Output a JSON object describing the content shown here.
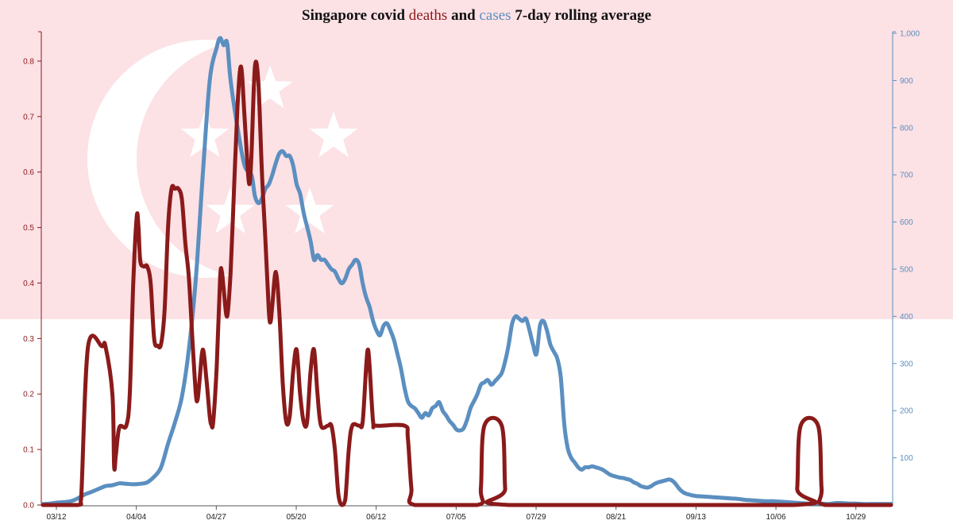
{
  "colors": {
    "deaths": "#8b1a1a",
    "cases": "#5b8fc0",
    "flag_red": "#fce1e5",
    "flag_white": "#ffffff",
    "title_text": "#111111",
    "axis_x": "#555555"
  },
  "chart_data": {
    "type": "line",
    "title": {
      "prefix": "Singapore covid ",
      "series_a": "deaths",
      "middle": " and ",
      "series_b": "cases",
      "suffix": " 7-day rolling average"
    },
    "background": "singapore-flag",
    "x": {
      "unit": "days-since-first-tick",
      "min": 0,
      "max": 244,
      "tick_values": [
        0,
        23,
        46,
        69,
        92,
        115,
        138,
        161,
        184,
        207,
        230
      ],
      "tick_labels": [
        "03/12",
        "04/04",
        "04/27",
        "05/20",
        "06/12",
        "07/05",
        "07/29",
        "08/21",
        "09/13",
        "10/06",
        "10/29"
      ]
    },
    "y_left": {
      "series": "deaths",
      "min": 0,
      "max": 0.85,
      "tick_values": [
        0,
        0.1,
        0.2,
        0.3,
        0.4,
        0.5,
        0.6,
        0.7,
        0.8
      ],
      "tick_labels": [
        "0.0",
        "0.1",
        "0.2",
        "0.3",
        "0.4",
        "0.5",
        "0.6",
        "0.7",
        "0.8"
      ]
    },
    "y_right": {
      "series": "cases",
      "min": 0,
      "max": 1000,
      "tick_values": [
        100,
        200,
        300,
        400,
        500,
        600,
        700,
        800,
        900,
        1000
      ],
      "tick_labels": [
        "100",
        "200",
        "300",
        "400",
        "500",
        "600",
        "700",
        "800",
        "900",
        "1,000"
      ]
    },
    "series": [
      {
        "name": "deaths",
        "axis": "left",
        "points": [
          [
            0,
            0
          ],
          [
            10,
            0
          ],
          [
            11,
            0.01
          ],
          [
            13,
            0.286
          ],
          [
            17,
            0.286
          ],
          [
            18,
            0.286
          ],
          [
            20,
            0.2
          ],
          [
            20.5,
            0.07
          ],
          [
            21,
            0.09
          ],
          [
            22,
            0.14
          ],
          [
            24,
            0.143
          ],
          [
            25,
            0.2
          ],
          [
            26,
            0.4
          ],
          [
            27,
            0.52
          ],
          [
            27.5,
            0.5
          ],
          [
            28,
            0.44
          ],
          [
            29,
            0.43
          ],
          [
            30,
            0.43
          ],
          [
            31,
            0.4
          ],
          [
            32,
            0.3
          ],
          [
            33,
            0.287
          ],
          [
            34,
            0.29
          ],
          [
            35,
            0.35
          ],
          [
            36,
            0.5
          ],
          [
            37,
            0.57
          ],
          [
            38,
            0.57
          ],
          [
            39,
            0.57
          ],
          [
            40,
            0.55
          ],
          [
            41,
            0.47
          ],
          [
            42,
            0.41
          ],
          [
            43,
            0.3
          ],
          [
            44,
            0.2
          ],
          [
            44.5,
            0.19
          ],
          [
            45,
            0.22
          ],
          [
            46,
            0.28
          ],
          [
            47,
            0.23
          ],
          [
            48,
            0.16
          ],
          [
            48.5,
            0.144
          ],
          [
            49,
            0.15
          ],
          [
            50,
            0.25
          ],
          [
            51,
            0.41
          ],
          [
            51.5,
            0.42
          ],
          [
            52,
            0.39
          ],
          [
            53,
            0.34
          ],
          [
            54,
            0.42
          ],
          [
            55,
            0.57
          ],
          [
            56,
            0.72
          ],
          [
            57,
            0.79
          ],
          [
            58,
            0.7
          ],
          [
            59,
            0.6
          ],
          [
            59.5,
            0.58
          ],
          [
            60,
            0.63
          ],
          [
            61,
            0.79
          ],
          [
            62,
            0.76
          ],
          [
            63,
            0.6
          ],
          [
            64,
            0.48
          ],
          [
            65,
            0.35
          ],
          [
            65.5,
            0.33
          ],
          [
            66,
            0.36
          ],
          [
            67,
            0.42
          ],
          [
            68,
            0.35
          ],
          [
            69,
            0.22
          ],
          [
            70,
            0.15
          ],
          [
            71,
            0.16
          ],
          [
            72,
            0.24
          ],
          [
            73,
            0.28
          ],
          [
            74,
            0.2
          ],
          [
            75,
            0.15
          ],
          [
            76,
            0.15
          ],
          [
            77,
            0.24
          ],
          [
            78,
            0.28
          ],
          [
            79,
            0.2
          ],
          [
            80,
            0.143
          ],
          [
            82,
            0.143
          ],
          [
            83,
            0.143
          ],
          [
            84,
            0.1
          ],
          [
            85,
            0.02
          ],
          [
            86,
            0
          ],
          [
            87,
            0.01
          ],
          [
            88,
            0.1
          ],
          [
            89,
            0.143
          ],
          [
            91,
            0.143
          ],
          [
            92,
            0.15
          ],
          [
            93,
            0.25
          ],
          [
            93.5,
            0.28
          ],
          [
            94,
            0.25
          ],
          [
            95,
            0.15
          ],
          [
            96,
            0.143
          ],
          [
            104,
            0.143
          ],
          [
            105,
            0.12
          ],
          [
            106,
            0.03
          ],
          [
            107,
            0
          ],
          [
            125,
            0
          ],
          [
            126,
            0.03
          ],
          [
            127,
            0.143
          ],
          [
            132,
            0.143
          ],
          [
            133,
            0.03
          ],
          [
            134,
            0
          ],
          [
            216,
            0
          ],
          [
            217,
            0.03
          ],
          [
            218,
            0.143
          ],
          [
            223,
            0.143
          ],
          [
            224,
            0.03
          ],
          [
            225,
            0
          ],
          [
            244,
            0
          ]
        ]
      },
      {
        "name": "cases",
        "axis": "right",
        "points": [
          [
            0,
            2
          ],
          [
            2,
            3
          ],
          [
            4,
            5
          ],
          [
            6,
            6
          ],
          [
            8,
            8
          ],
          [
            10,
            14
          ],
          [
            12,
            22
          ],
          [
            14,
            28
          ],
          [
            16,
            34
          ],
          [
            18,
            40
          ],
          [
            20,
            42
          ],
          [
            22,
            46
          ],
          [
            24,
            45
          ],
          [
            26,
            44
          ],
          [
            28,
            45
          ],
          [
            30,
            48
          ],
          [
            32,
            60
          ],
          [
            34,
            80
          ],
          [
            36,
            130
          ],
          [
            38,
            175
          ],
          [
            40,
            230
          ],
          [
            42,
            330
          ],
          [
            44,
            480
          ],
          [
            46,
            700
          ],
          [
            48,
            900
          ],
          [
            50,
            970
          ],
          [
            51,
            990
          ],
          [
            52,
            975
          ],
          [
            53,
            980
          ],
          [
            54,
            900
          ],
          [
            56,
            800
          ],
          [
            58,
            720
          ],
          [
            60,
            700
          ],
          [
            61,
            655
          ],
          [
            62,
            640
          ],
          [
            63,
            650
          ],
          [
            64,
            670
          ],
          [
            65,
            680
          ],
          [
            66,
            700
          ],
          [
            67,
            725
          ],
          [
            68,
            745
          ],
          [
            69,
            750
          ],
          [
            70,
            740
          ],
          [
            71,
            740
          ],
          [
            72,
            720
          ],
          [
            73,
            680
          ],
          [
            74,
            660
          ],
          [
            75,
            620
          ],
          [
            76,
            590
          ],
          [
            77,
            560
          ],
          [
            78,
            520
          ],
          [
            79,
            530
          ],
          [
            80,
            520
          ],
          [
            81,
            520
          ],
          [
            82,
            510
          ],
          [
            83,
            500
          ],
          [
            84,
            495
          ],
          [
            85,
            480
          ],
          [
            86,
            470
          ],
          [
            87,
            480
          ],
          [
            88,
            500
          ],
          [
            89,
            510
          ],
          [
            90,
            520
          ],
          [
            91,
            510
          ],
          [
            92,
            470
          ],
          [
            93,
            440
          ],
          [
            94,
            420
          ],
          [
            95,
            390
          ],
          [
            96,
            370
          ],
          [
            97,
            360
          ],
          [
            98,
            380
          ],
          [
            99,
            385
          ],
          [
            100,
            370
          ],
          [
            101,
            350
          ],
          [
            102,
            320
          ],
          [
            103,
            290
          ],
          [
            104,
            250
          ],
          [
            105,
            220
          ],
          [
            106,
            210
          ],
          [
            107,
            205
          ],
          [
            108,
            195
          ],
          [
            109,
            185
          ],
          [
            110,
            195
          ],
          [
            111,
            190
          ],
          [
            112,
            205
          ],
          [
            113,
            210
          ],
          [
            114,
            218
          ],
          [
            115,
            200
          ],
          [
            116,
            190
          ],
          [
            117,
            178
          ],
          [
            118,
            170
          ],
          [
            119,
            160
          ],
          [
            120,
            158
          ],
          [
            121,
            162
          ],
          [
            122,
            180
          ],
          [
            123,
            205
          ],
          [
            124,
            220
          ],
          [
            125,
            235
          ],
          [
            126,
            255
          ],
          [
            127,
            260
          ],
          [
            128,
            265
          ],
          [
            129,
            255
          ],
          [
            130,
            262
          ],
          [
            131,
            270
          ],
          [
            132,
            280
          ],
          [
            133,
            305
          ],
          [
            134,
            340
          ],
          [
            135,
            385
          ],
          [
            136,
            400
          ],
          [
            137,
            395
          ],
          [
            138,
            390
          ],
          [
            139,
            395
          ],
          [
            140,
            370
          ],
          [
            141,
            340
          ],
          [
            142,
            320
          ],
          [
            143,
            380
          ],
          [
            144,
            390
          ],
          [
            145,
            370
          ],
          [
            146,
            340
          ],
          [
            147,
            325
          ],
          [
            148,
            310
          ],
          [
            149,
            270
          ],
          [
            150,
            170
          ],
          [
            151,
            120
          ],
          [
            152,
            100
          ],
          [
            153,
            90
          ],
          [
            154,
            80
          ],
          [
            155,
            75
          ],
          [
            156,
            80
          ],
          [
            157,
            80
          ],
          [
            158,
            82
          ],
          [
            159,
            80
          ],
          [
            160,
            78
          ],
          [
            161,
            75
          ],
          [
            162,
            70
          ],
          [
            163,
            65
          ],
          [
            164,
            62
          ],
          [
            165,
            60
          ],
          [
            166,
            58
          ],
          [
            167,
            57
          ],
          [
            168,
            55
          ],
          [
            169,
            53
          ],
          [
            170,
            48
          ],
          [
            171,
            45
          ],
          [
            172,
            40
          ],
          [
            173,
            38
          ],
          [
            174,
            37
          ],
          [
            175,
            40
          ],
          [
            176,
            45
          ],
          [
            177,
            48
          ],
          [
            178,
            50
          ],
          [
            179,
            52
          ],
          [
            180,
            54
          ],
          [
            181,
            52
          ],
          [
            182,
            45
          ],
          [
            183,
            35
          ],
          [
            184,
            28
          ],
          [
            185,
            24
          ],
          [
            186,
            22
          ],
          [
            187,
            20
          ],
          [
            188,
            19
          ],
          [
            190,
            18
          ],
          [
            192,
            17
          ],
          [
            194,
            16
          ],
          [
            196,
            15
          ],
          [
            198,
            14
          ],
          [
            200,
            13
          ],
          [
            202,
            11
          ],
          [
            204,
            10
          ],
          [
            206,
            9
          ],
          [
            208,
            8
          ],
          [
            210,
            8
          ],
          [
            212,
            7
          ],
          [
            214,
            6
          ],
          [
            216,
            5
          ],
          [
            218,
            4
          ],
          [
            220,
            3
          ],
          [
            222,
            3
          ],
          [
            224,
            3
          ],
          [
            226,
            2
          ],
          [
            228,
            4
          ],
          [
            230,
            4
          ],
          [
            232,
            3
          ],
          [
            234,
            3
          ],
          [
            236,
            2
          ],
          [
            238,
            2
          ],
          [
            240,
            2
          ],
          [
            242,
            2
          ],
          [
            244,
            2
          ]
        ]
      }
    ]
  }
}
